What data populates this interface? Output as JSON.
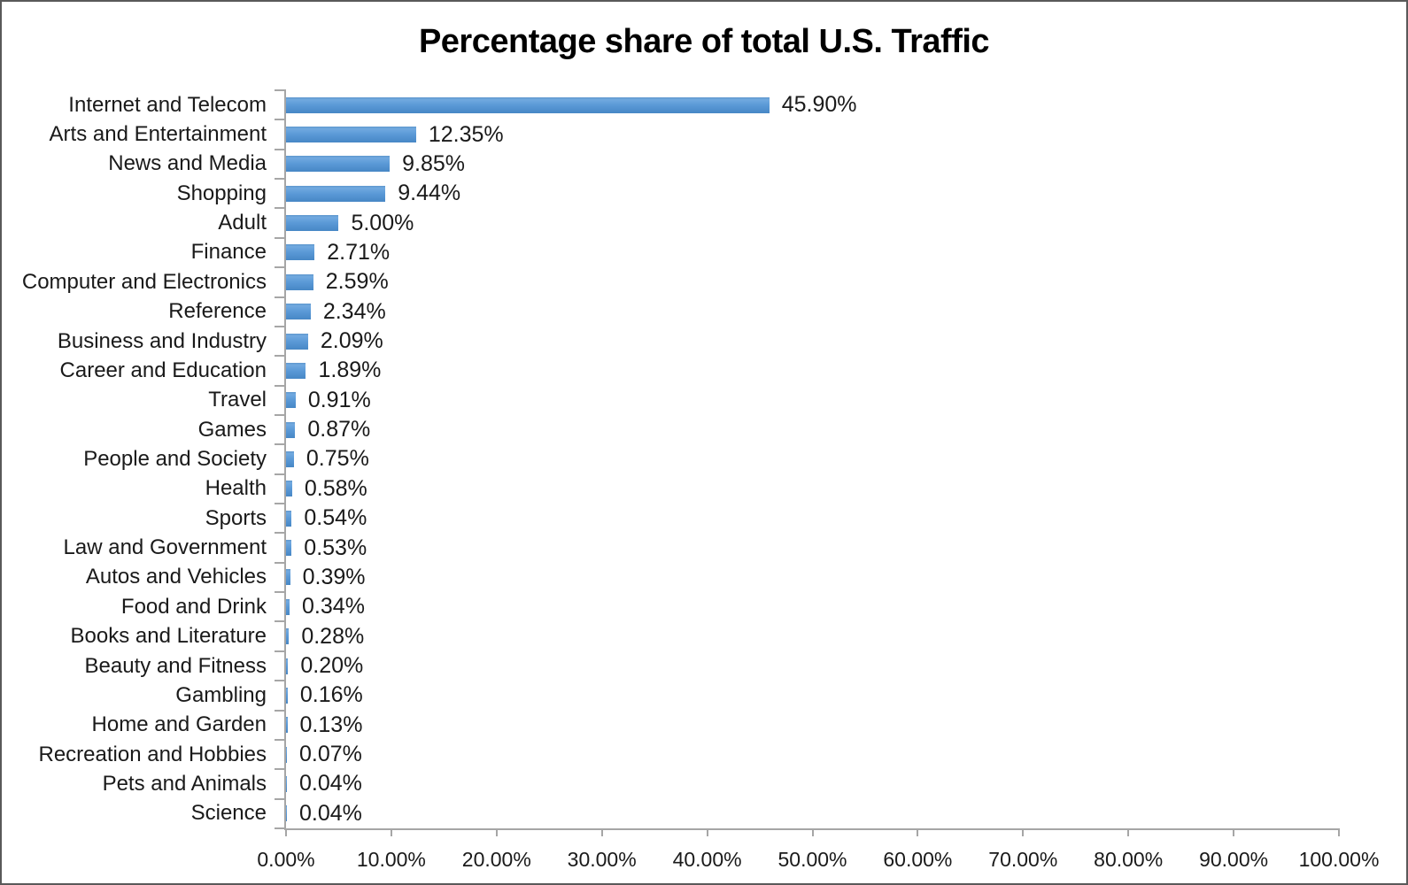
{
  "chart_data": {
    "type": "bar",
    "orientation": "horizontal",
    "title": "Percentage share of total U.S. Traffic",
    "categories": [
      "Internet and Telecom",
      "Arts and Entertainment",
      "News and Media",
      "Shopping",
      "Adult",
      "Finance",
      "Computer and Electronics",
      "Reference",
      "Business and Industry",
      "Career and Education",
      "Travel",
      "Games",
      "People and Society",
      "Health",
      "Sports",
      "Law and Government",
      "Autos and Vehicles",
      "Food and Drink",
      "Books and Literature",
      "Beauty and Fitness",
      "Gambling",
      "Home and Garden",
      "Recreation and Hobbies",
      "Pets and Animals",
      "Science"
    ],
    "values": [
      45.9,
      12.35,
      9.85,
      9.44,
      5.0,
      2.71,
      2.59,
      2.34,
      2.09,
      1.89,
      0.91,
      0.87,
      0.75,
      0.58,
      0.54,
      0.53,
      0.39,
      0.34,
      0.28,
      0.2,
      0.16,
      0.13,
      0.07,
      0.04,
      0.04
    ],
    "data_labels": [
      "45.90%",
      "12.35%",
      "9.85%",
      "9.44%",
      "5.00%",
      "2.71%",
      "2.59%",
      "2.34%",
      "2.09%",
      "1.89%",
      "0.91%",
      "0.87%",
      "0.75%",
      "0.58%",
      "0.54%",
      "0.53%",
      "0.39%",
      "0.34%",
      "0.28%",
      "0.20%",
      "0.16%",
      "0.13%",
      "0.07%",
      "0.04%",
      "0.04%"
    ],
    "xlim": [
      0,
      100
    ],
    "x_tick_labels": [
      "0.00%",
      "10.00%",
      "20.00%",
      "30.00%",
      "40.00%",
      "50.00%",
      "60.00%",
      "70.00%",
      "80.00%",
      "90.00%",
      "100.00%"
    ],
    "grid": false,
    "legend": false,
    "bar_color": "#5B9BD5",
    "axis_color": "#A6A6A6",
    "title_color": "#000000",
    "text_color": "#1A1A1A"
  }
}
